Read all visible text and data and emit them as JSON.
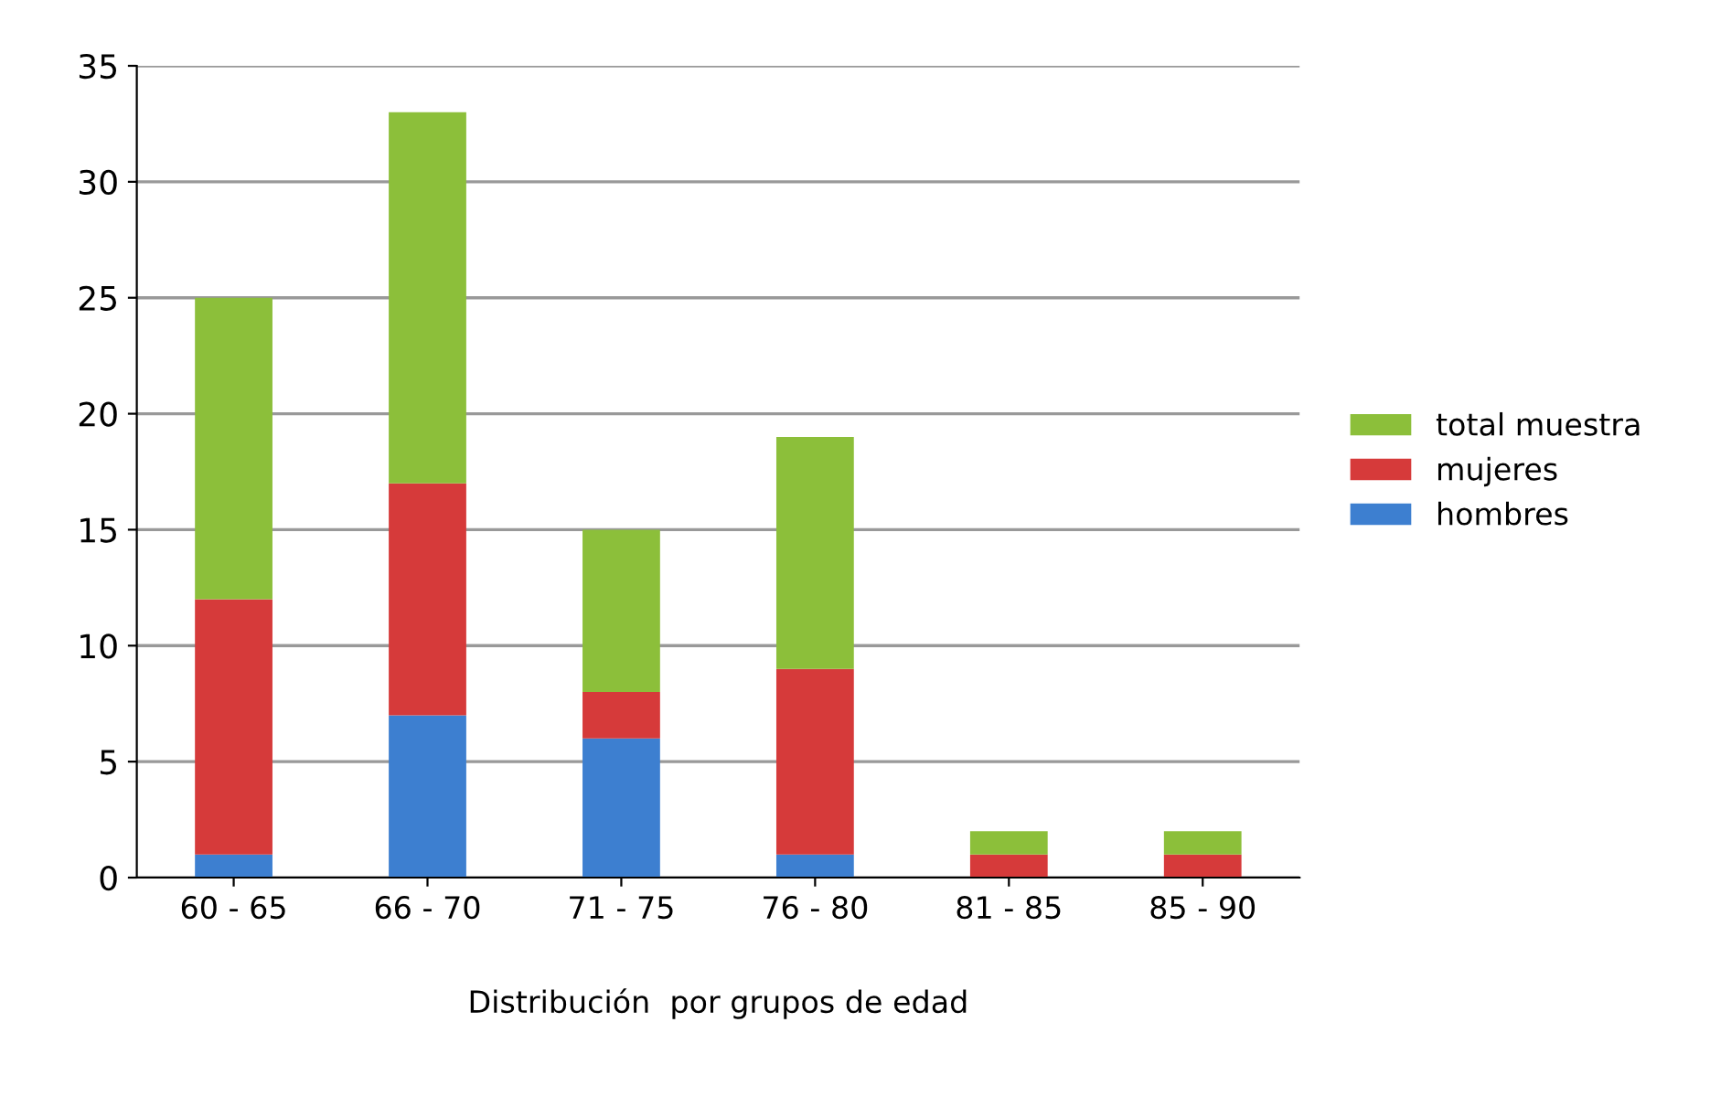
{
  "chart_data": {
    "type": "bar",
    "stacked": true,
    "xlabel": "Distribución  por grupos de edad",
    "categories": [
      "60 - 65",
      "66 - 70",
      "71 - 75",
      "76 - 80",
      "81 - 85",
      "85 - 90"
    ],
    "series": [
      {
        "name": "hombres",
        "color": "#3d7fd0",
        "values": [
          1,
          7,
          6,
          1,
          0,
          0
        ]
      },
      {
        "name": "mujeres",
        "color": "#d63a3a",
        "values": [
          11,
          10,
          2,
          8,
          1,
          1
        ]
      },
      {
        "name": "total muestra",
        "color": "#8cbf3a",
        "values": [
          13,
          16,
          7,
          10,
          1,
          1
        ]
      }
    ],
    "ylim": [
      0,
      35
    ],
    "yticks": [
      0,
      5,
      10,
      15,
      20,
      25,
      30,
      35
    ],
    "grid": "y",
    "legend": "right"
  }
}
